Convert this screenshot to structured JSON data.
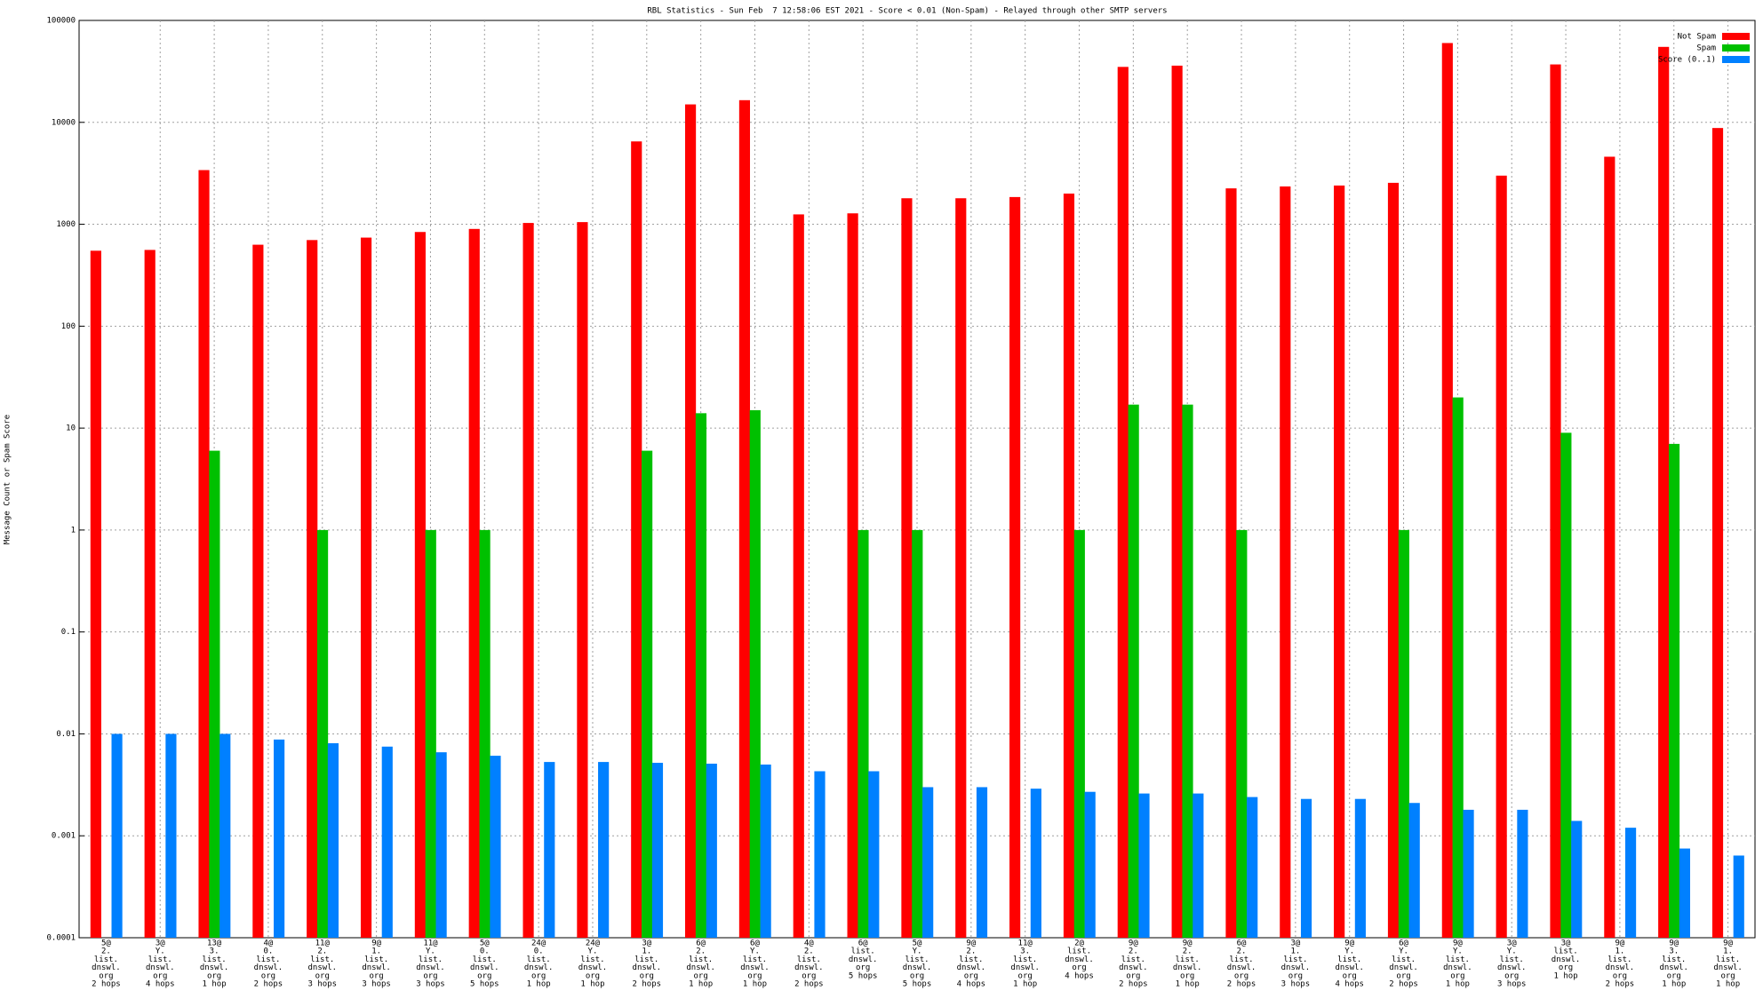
{
  "chart_data": {
    "type": "bar",
    "title": "RBL Statistics - Sun Feb  7 12:58:06 EST 2021 - Score < 0.01 (Non-Spam) - Relayed through other SMTP servers",
    "y_label": "Message Count or Spam Score",
    "log_scale": true,
    "grid": true,
    "legend": "top-right",
    "ylim": [
      0.0001,
      100000
    ],
    "yticks": [
      0.0001,
      0.001,
      0.01,
      0.1,
      1,
      10,
      100,
      1000,
      10000,
      100000
    ],
    "categories": [
      [
        "5@",
        "2.",
        "list.",
        "dnswl.",
        "org",
        "2 hops"
      ],
      [
        "3@",
        "Y.",
        "list.",
        "dnswl.",
        "org",
        "4 hops"
      ],
      [
        "13@",
        "3.",
        "list.",
        "dnswl.",
        "org",
        "1 hop"
      ],
      [
        "4@",
        "0.",
        "list.",
        "dnswl.",
        "org",
        "2 hops"
      ],
      [
        "11@",
        "2.",
        "list.",
        "dnswl.",
        "org",
        "3 hops"
      ],
      [
        "9@",
        "1.",
        "list.",
        "dnswl.",
        "org",
        "3 hops"
      ],
      [
        "11@",
        "Y.",
        "list.",
        "dnswl.",
        "org",
        "3 hops"
      ],
      [
        "5@",
        "0.",
        "list.",
        "dnswl.",
        "org",
        "5 hops"
      ],
      [
        "24@",
        "0.",
        "list.",
        "dnswl.",
        "org",
        "1 hop"
      ],
      [
        "24@",
        "Y.",
        "list.",
        "dnswl.",
        "org",
        "1 hop"
      ],
      [
        "3@",
        "1.",
        "list.",
        "dnswl.",
        "org",
        "2 hops"
      ],
      [
        "6@",
        "2.",
        "list.",
        "dnswl.",
        "org",
        "1 hop"
      ],
      [
        "6@",
        "Y.",
        "list.",
        "dnswl.",
        "org",
        "1 hop"
      ],
      [
        "4@",
        "2.",
        "list.",
        "dnswl.",
        "org",
        "2 hops"
      ],
      [
        "6@",
        "list.",
        "dnswl.",
        "org",
        "5 hops"
      ],
      [
        "5@",
        "Y.",
        "list.",
        "dnswl.",
        "org",
        "5 hops"
      ],
      [
        "9@",
        "2.",
        "list.",
        "dnswl.",
        "org",
        "4 hops"
      ],
      [
        "11@",
        "3.",
        "list.",
        "dnswl.",
        "org",
        "1 hop"
      ],
      [
        "2@",
        "list.",
        "dnswl.",
        "org",
        "4 hops"
      ],
      [
        "9@",
        "2.",
        "list.",
        "dnswl.",
        "org",
        "2 hops"
      ],
      [
        "9@",
        "2.",
        "list.",
        "dnswl.",
        "org",
        "1 hop"
      ],
      [
        "6@",
        "2.",
        "list.",
        "dnswl.",
        "org",
        "2 hops"
      ],
      [
        "3@",
        "1.",
        "list.",
        "dnswl.",
        "org",
        "3 hops"
      ],
      [
        "9@",
        "Y.",
        "list.",
        "dnswl.",
        "org",
        "4 hops"
      ],
      [
        "6@",
        "Y.",
        "list.",
        "dnswl.",
        "org",
        "2 hops"
      ],
      [
        "9@",
        "Y.",
        "list.",
        "dnswl.",
        "org",
        "1 hop"
      ],
      [
        "3@",
        "Y.",
        "list.",
        "dnswl.",
        "org",
        "3 hops"
      ],
      [
        "3@",
        "list.",
        "dnswl.",
        "org",
        "1 hop"
      ],
      [
        "9@",
        "1.",
        "list.",
        "dnswl.",
        "org",
        "2 hops"
      ],
      [
        "9@",
        "3.",
        "list.",
        "dnswl.",
        "org",
        "1 hop"
      ],
      [
        "9@",
        "1.",
        "list.",
        "dnswl.",
        "org",
        "1 hop"
      ]
    ],
    "series": [
      {
        "name": "Not Spam",
        "color": "#ff0000",
        "values": [
          550,
          560,
          3400,
          630,
          700,
          740,
          840,
          900,
          1030,
          1050,
          6500,
          15000,
          16500,
          1250,
          1280,
          1800,
          1800,
          1850,
          2000,
          35000,
          36000,
          2250,
          2350,
          2400,
          2550,
          60000,
          3000,
          37000,
          4600,
          55000,
          8800
        ]
      },
      {
        "name": "Spam",
        "color": "#00c000",
        "values": [
          null,
          null,
          6,
          null,
          1,
          null,
          1,
          1,
          null,
          null,
          6,
          14,
          15,
          null,
          1,
          1,
          null,
          null,
          1,
          17,
          17,
          1,
          null,
          null,
          1,
          20,
          null,
          9,
          null,
          7,
          null
        ]
      },
      {
        "name": "Score (0..1)",
        "color": "#0080ff",
        "values": [
          0.01,
          0.01,
          0.01,
          0.0088,
          0.0081,
          0.0075,
          0.0066,
          0.0061,
          0.0053,
          0.0053,
          0.0052,
          0.0051,
          0.005,
          0.0043,
          0.0043,
          0.003,
          0.003,
          0.0029,
          0.0027,
          0.0026,
          0.0026,
          0.0024,
          0.0023,
          0.0023,
          0.0021,
          0.0018,
          0.0018,
          0.0014,
          0.0012,
          0.00075,
          0.00064
        ]
      }
    ]
  }
}
